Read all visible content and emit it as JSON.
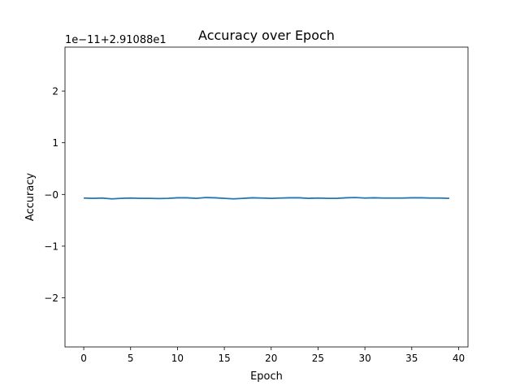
{
  "chart_data": {
    "type": "line",
    "title": "Accuracy over Epoch",
    "xlabel": "Epoch",
    "ylabel": "Accuracy",
    "offset_label": "1e−11+2.91088e1",
    "xlim": [
      -2,
      41
    ],
    "ylim": [
      -2.95,
      2.85
    ],
    "xticks": [
      0,
      5,
      10,
      15,
      20,
      25,
      30,
      35,
      40
    ],
    "xtick_labels": [
      "0",
      "5",
      "10",
      "15",
      "20",
      "25",
      "30",
      "35",
      "40"
    ],
    "yticks": [
      2,
      1,
      0,
      -1,
      -2
    ],
    "ytick_labels": [
      "2",
      "1",
      "−0",
      "−1",
      "−2"
    ],
    "grid": false,
    "series": [
      {
        "color": "#1f77b4",
        "x": [
          0,
          1,
          2,
          3,
          4,
          5,
          6,
          7,
          8,
          9,
          10,
          11,
          12,
          13,
          14,
          15,
          16,
          17,
          18,
          19,
          20,
          21,
          22,
          23,
          24,
          25,
          26,
          27,
          28,
          29,
          30,
          31,
          32,
          33,
          34,
          35,
          36,
          37,
          38,
          39
        ],
        "y": [
          -0.07,
          -0.075,
          -0.07,
          -0.085,
          -0.075,
          -0.07,
          -0.075,
          -0.075,
          -0.08,
          -0.075,
          -0.065,
          -0.065,
          -0.075,
          -0.06,
          -0.065,
          -0.075,
          -0.085,
          -0.075,
          -0.065,
          -0.07,
          -0.075,
          -0.07,
          -0.065,
          -0.065,
          -0.075,
          -0.07,
          -0.075,
          -0.075,
          -0.065,
          -0.06,
          -0.07,
          -0.065,
          -0.07,
          -0.07,
          -0.07,
          -0.065,
          -0.065,
          -0.07,
          -0.07,
          -0.075
        ]
      }
    ]
  }
}
